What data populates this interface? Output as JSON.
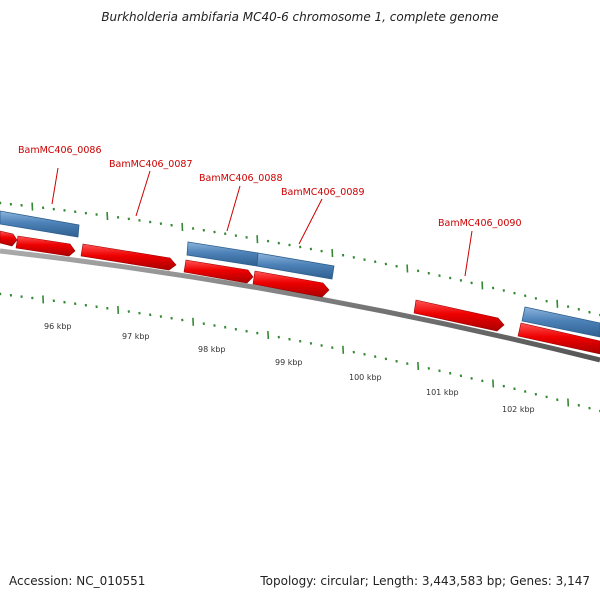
{
  "title": "Burkholderia ambifaria MC40-6 chromosome 1, complete genome",
  "accession": "Accession: NC_010551",
  "summary": "Topology: circular; Length: 3,443,583 bp; Genes: 3,147",
  "scale_labels": [
    "96 kbp",
    "97 kbp",
    "98 kbp",
    "99 kbp",
    "100 kbp",
    "101 kbp",
    "102 kbp"
  ],
  "gene_labels": [
    "BamMC406_0086",
    "BamMC406_0087",
    "BamMC406_0088",
    "BamMC406_0089",
    "BamMC406_0090"
  ],
  "colors": {
    "backbone": "#808080",
    "cds_red": "#ee0000",
    "gene_blue": "#4d82b8",
    "tick_green": "#338a33",
    "label_red": "#cc0000"
  }
}
